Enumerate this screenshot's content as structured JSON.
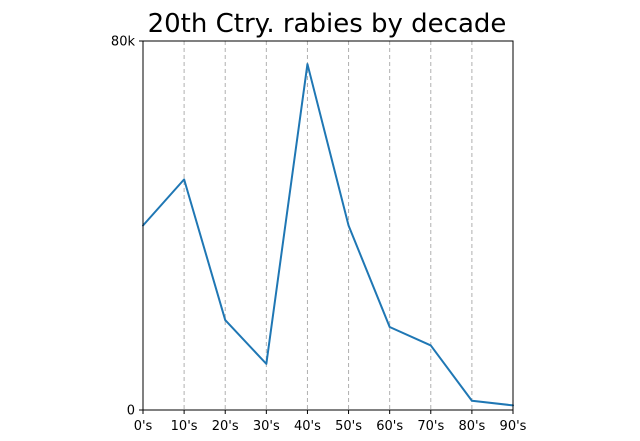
{
  "chart_data": {
    "type": "line",
    "title": "20th Ctry. rabies by decade",
    "xlabel": "",
    "ylabel": "",
    "categories": [
      "0's",
      "10's",
      "20's",
      "30's",
      "40's",
      "50's",
      "60's",
      "70's",
      "80's",
      "90's"
    ],
    "series": [
      {
        "values": [
          40000,
          50000,
          19500,
          10000,
          75000,
          40000,
          18000,
          14000,
          2000,
          1000
        ],
        "color": "#1f77b4"
      }
    ],
    "ylim": [
      0,
      80000
    ],
    "y_ticks": [
      {
        "value": 0,
        "label": "0"
      },
      {
        "value": 80000,
        "label": "80k"
      }
    ],
    "grid": {
      "x": true,
      "y": false,
      "style": "dashed",
      "color": "#b0b0b0"
    }
  }
}
